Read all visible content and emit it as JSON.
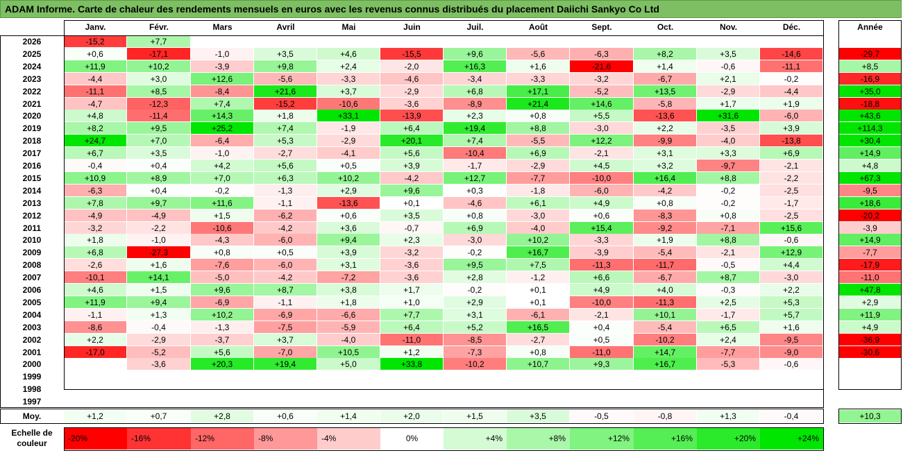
{
  "title": "ADAM Informe. Carte de chaleur des rendements mensuels en euros avec les revenus connus distribués du placement Daiichi Sankyo Co Ltd",
  "months": [
    "Janv.",
    "Févr.",
    "Mars",
    "Avril",
    "Mai",
    "Juin",
    "Juil.",
    "Août",
    "Sept.",
    "Oct.",
    "Nov.",
    "Déc."
  ],
  "year_header": "Année",
  "avg_label": "Moy.",
  "scale_label": "Echelle de couleur",
  "scale": [
    "-20%",
    "-16%",
    "-12%",
    "-8%",
    "-4%",
    "0%",
    "+4%",
    "+8%",
    "+12%",
    "+16%",
    "+20%",
    "+24%"
  ],
  "colors": {
    "neg": "#ff0000",
    "pos": "#00e600",
    "zero": "#ffffff",
    "title_bg": "#7dbf62"
  },
  "chart_data": {
    "type": "heatmap",
    "title": "ADAM Informe. Carte de chaleur des rendements mensuels en euros avec les revenus connus distribués du placement Daiichi Sankyo Co Ltd",
    "columns": [
      "Janv.",
      "Févr.",
      "Mars",
      "Avril",
      "Mai",
      "Juin",
      "Juil.",
      "Août",
      "Sept.",
      "Oct.",
      "Nov.",
      "Déc.",
      "Année"
    ],
    "rows": [
      {
        "year": "2026",
        "values": [
          "-15,2",
          "+7,7",
          "",
          "",
          "",
          "",
          "",
          "",
          "",
          "",
          "",
          ""
        ],
        "annual": ""
      },
      {
        "year": "2025",
        "values": [
          "+0,6",
          "-17,1",
          "-1,0",
          "+3,5",
          "+4,6",
          "-15,5",
          "+9,6",
          "-5,6",
          "-6,3",
          "+8,2",
          "+3,5",
          "-14,6"
        ],
        "annual": "-29,7"
      },
      {
        "year": "2024",
        "values": [
          "+11,9",
          "+10,2",
          "-3,9",
          "+9,8",
          "+2,4",
          "-2,0",
          "+16,3",
          "+1,6",
          "-21,6",
          "+1,4",
          "-0,6",
          "-11,1"
        ],
        "annual": "+8,5"
      },
      {
        "year": "2023",
        "values": [
          "-4,4",
          "+3,0",
          "+12,6",
          "-5,6",
          "-3,3",
          "-4,6",
          "-3,4",
          "-3,3",
          "-3,2",
          "-6,7",
          "+2,1",
          "-0,2"
        ],
        "annual": "-16,9"
      },
      {
        "year": "2022",
        "values": [
          "-11,1",
          "+8,5",
          "-8,4",
          "+21,6",
          "+3,7",
          "-2,9",
          "+6,8",
          "+17,1",
          "-5,2",
          "+13,5",
          "-2,9",
          "-4,4"
        ],
        "annual": "+35,0"
      },
      {
        "year": "2021",
        "values": [
          "-4,7",
          "-12,3",
          "+7,4",
          "-15,2",
          "-10,6",
          "-3,6",
          "-8,9",
          "+21,4",
          "+14,6",
          "-5,8",
          "+1,7",
          "+1,9"
        ],
        "annual": "-18,8"
      },
      {
        "year": "2020",
        "values": [
          "+4,8",
          "-11,4",
          "+14,3",
          "+1,8",
          "+33,1",
          "-13,9",
          "+2,3",
          "+0,8",
          "+5,5",
          "-13,6",
          "+31,6",
          "-6,0"
        ],
        "annual": "+43,6"
      },
      {
        "year": "2019",
        "values": [
          "+8,2",
          "+9,5",
          "+25,2",
          "+7,4",
          "-1,9",
          "+6,4",
          "+19,4",
          "+8,8",
          "-3,0",
          "+2,2",
          "-3,5",
          "+3,9"
        ],
        "annual": "+114,3"
      },
      {
        "year": "2018",
        "values": [
          "+24,7",
          "+7,0",
          "-6,4",
          "+5,3",
          "-2,9",
          "+20,1",
          "+7,4",
          "-5,5",
          "+12,2",
          "-9,9",
          "-4,0",
          "-13,8"
        ],
        "annual": "+30,4"
      },
      {
        "year": "2017",
        "values": [
          "+6,7",
          "+3,5",
          "-1,0",
          "-2,7",
          "-4,1",
          "+5,6",
          "-10,4",
          "+6,9",
          "-2,1",
          "+3,1",
          "+3,3",
          "+6,9"
        ],
        "annual": "+14,9"
      },
      {
        "year": "2016",
        "values": [
          "-0,4",
          "+0,4",
          "+4,2",
          "+5,6",
          "+0,5",
          "+3,9",
          "-1,7",
          "-2,9",
          "+4,5",
          "+3,2",
          "-9,7",
          "-2,1"
        ],
        "annual": "+4,8"
      },
      {
        "year": "2015",
        "values": [
          "+10,9",
          "+8,9",
          "+7,0",
          "+6,3",
          "+10,2",
          "-4,2",
          "+12,7",
          "-7,7",
          "-10,0",
          "+16,4",
          "+8,8",
          "-2,2"
        ],
        "annual": "+67,3"
      },
      {
        "year": "2014",
        "values": [
          "-6,3",
          "+0,4",
          "-0,2",
          "-1,3",
          "+2,9",
          "+9,6",
          "+0,3",
          "-1,8",
          "-6,0",
          "-4,2",
          "-0,2",
          "-2,5"
        ],
        "annual": "-9,5"
      },
      {
        "year": "2013",
        "values": [
          "+7,8",
          "+9,7",
          "+11,6",
          "-1,1",
          "-13,6",
          "+0,1",
          "-4,6",
          "+6,1",
          "+4,9",
          "+0,8",
          "-0,2",
          "-1,7"
        ],
        "annual": "+18,6"
      },
      {
        "year": "2012",
        "values": [
          "-4,9",
          "-4,9",
          "+1,5",
          "-6,2",
          "+0,6",
          "+3,5",
          "+0,8",
          "-3,0",
          "+0,6",
          "-8,3",
          "+0,8",
          "-2,5"
        ],
        "annual": "-20,2"
      },
      {
        "year": "2011",
        "values": [
          "-3,2",
          "-2,2",
          "-10,6",
          "-4,2",
          "+3,6",
          "-0,7",
          "+6,9",
          "-4,0",
          "+15,4",
          "-9,2",
          "-7,1",
          "+15,6"
        ],
        "annual": "-3,9"
      },
      {
        "year": "2010",
        "values": [
          "+1,8",
          "-1,0",
          "-4,3",
          "-6,0",
          "+9,4",
          "+2,3",
          "-3,0",
          "+10,2",
          "-3,3",
          "+1,9",
          "+8,8",
          "-0,6"
        ],
        "annual": "+14,9"
      },
      {
        "year": "2009",
        "values": [
          "+6,8",
          "-27,3",
          "+0,8",
          "+0,5",
          "+3,9",
          "-3,2",
          "-0,2",
          "+16,7",
          "-3,9",
          "-5,4",
          "-2,1",
          "+12,9"
        ],
        "annual": "-7,7"
      },
      {
        "year": "2008",
        "values": [
          "-2,6",
          "+1,6",
          "-7,6",
          "-6,0",
          "+3,1",
          "-3,6",
          "+9,5",
          "+7,5",
          "-11,3",
          "-11,7",
          "-0,5",
          "+4,4"
        ],
        "annual": "-17,9"
      },
      {
        "year": "2007",
        "values": [
          "-10,1",
          "+14,1",
          "-5,0",
          "-4,2",
          "-7,2",
          "-3,6",
          "+2,8",
          "-1,2",
          "+6,6",
          "-6,7",
          "+8,7",
          "-3,0"
        ],
        "annual": "-11,0"
      },
      {
        "year": "2006",
        "values": [
          "+4,6",
          "+1,5",
          "+9,6",
          "+8,7",
          "+3,8",
          "+1,7",
          "-0,2",
          "+0,1",
          "+4,9",
          "+4,0",
          "-0,3",
          "+2,2"
        ],
        "annual": "+47,8"
      },
      {
        "year": "2005",
        "values": [
          "+11,9",
          "+9,4",
          "-6,9",
          "-1,1",
          "+1,8",
          "+1,0",
          "+2,9",
          "+0,1",
          "-10,0",
          "-11,3",
          "+2,5",
          "+5,3"
        ],
        "annual": "+2,9"
      },
      {
        "year": "2004",
        "values": [
          "-1,1",
          "+1,3",
          "+10,2",
          "-6,9",
          "-6,6",
          "+7,7",
          "+3,1",
          "-6,1",
          "-2,1",
          "+10,1",
          "-1,7",
          "+5,7"
        ],
        "annual": "+11,9"
      },
      {
        "year": "2003",
        "values": [
          "-8,6",
          "-0,4",
          "-1,3",
          "-7,5",
          "-5,9",
          "+6,4",
          "+5,2",
          "+16,5",
          "+0,4",
          "-5,4",
          "+6,5",
          "+1,6"
        ],
        "annual": "+4,9"
      },
      {
        "year": "2002",
        "values": [
          "+2,2",
          "-2,9",
          "-3,7",
          "+3,7",
          "-4,0",
          "-11,0",
          "-8,5",
          "-2,7",
          "+0,5",
          "-10,2",
          "+2,4",
          "-9,5"
        ],
        "annual": "-36,9"
      },
      {
        "year": "2001",
        "values": [
          "-17,0",
          "-5,2",
          "+5,6",
          "-7,0",
          "+10,5",
          "+1,2",
          "-7,3",
          "+0,8",
          "-11,0",
          "+14,7",
          "-7,7",
          "-9,0"
        ],
        "annual": "-30,6"
      },
      {
        "year": "2000",
        "values": [
          "",
          "-3,6",
          "+20,3",
          "+19,4",
          "+5,0",
          "+33,8",
          "-10,2",
          "+10,7",
          "+9,3",
          "+16,7",
          "-5,3",
          "-0,6"
        ],
        "annual": ""
      },
      {
        "year": "1999",
        "values": [
          "",
          "",
          "",
          "",
          "",
          "",
          "",
          "",
          "",
          "",
          "",
          ""
        ],
        "annual": ""
      },
      {
        "year": "1998",
        "values": [
          "",
          "",
          "",
          "",
          "",
          "",
          "",
          "",
          "",
          "",
          "",
          ""
        ],
        "annual": ""
      },
      {
        "year": "1997",
        "values": [
          "",
          "",
          "",
          "",
          "",
          "",
          "",
          "",
          "",
          "",
          "",
          ""
        ],
        "annual": ""
      }
    ],
    "averages": [
      "+1,2",
      "+0,7",
      "+2,8",
      "+0,6",
      "+1,4",
      "+2,0",
      "+1,5",
      "+3,5",
      "-0,5",
      "-0,8",
      "+1,3",
      "-0,4"
    ],
    "average_annual": "+10,3",
    "color_scale": {
      "min": -20,
      "max": 24,
      "step": 4
    }
  }
}
